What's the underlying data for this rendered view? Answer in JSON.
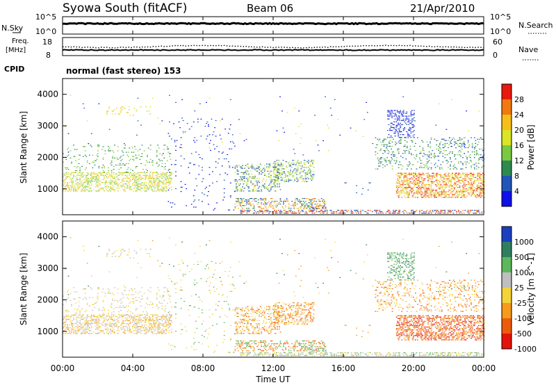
{
  "header": {
    "title": "Syowa South (fitACF)",
    "beam": "Beam 06",
    "date": "21/Apr/2010"
  },
  "noise_panel": {
    "left_label": "N.Sky",
    "right_label": "N.Search",
    "left_ticks": [
      "10^5",
      "10^0"
    ],
    "right_ticks": [
      "10^5",
      "10^0"
    ]
  },
  "freq_panel": {
    "left_label": "Freq.",
    "left_unit": "[MHz]",
    "left_ticks": [
      "18",
      "8"
    ],
    "right_label": "Nave",
    "right_ticks": [
      "60",
      "0"
    ]
  },
  "cpid": {
    "label": "CPID",
    "value": "normal (fast stereo) 153"
  },
  "x_axis": {
    "label": "Time UT",
    "ticks": [
      "00:00",
      "04:00",
      "08:00",
      "12:00",
      "16:00",
      "20:00",
      "00:00"
    ]
  },
  "chart_data": [
    {
      "type": "heatmap",
      "name": "power",
      "xlabel": "Time UT",
      "ylabel": "Slant Range [km]",
      "xlim": [
        0,
        24
      ],
      "ylim": [
        180,
        4500
      ],
      "yticks": [
        "4000",
        "3000",
        "2000",
        "1000"
      ],
      "colorbar": {
        "label": "Power [dB]",
        "ticks": [
          "28",
          "24",
          "20",
          "16",
          "12",
          "8",
          "4"
        ],
        "colors": [
          "#e81a0d",
          "#f07a0f",
          "#f5be1a",
          "#d9e526",
          "#7ac943",
          "#2e8a4f",
          "#2255b8",
          "#1010e8"
        ]
      }
    },
    {
      "type": "heatmap",
      "name": "velocity",
      "xlabel": "Time UT",
      "ylabel": "Slant Range [km]",
      "xlim": [
        0,
        24
      ],
      "ylim": [
        180,
        4500
      ],
      "yticks": [
        "4000",
        "3000",
        "2000",
        "1000"
      ],
      "colorbar": {
        "label": "Velocity [m s^-1]",
        "ticks": [
          "1000",
          "500",
          "100",
          "25",
          "-25",
          "-100",
          "-500",
          "-1000"
        ],
        "colors": [
          "#1a3fbf",
          "#2f7f5f",
          "#5cb85c",
          "#bfbfbf",
          "#f3d33a",
          "#f59a1a",
          "#ee5a0c",
          "#e4120a"
        ]
      }
    }
  ]
}
